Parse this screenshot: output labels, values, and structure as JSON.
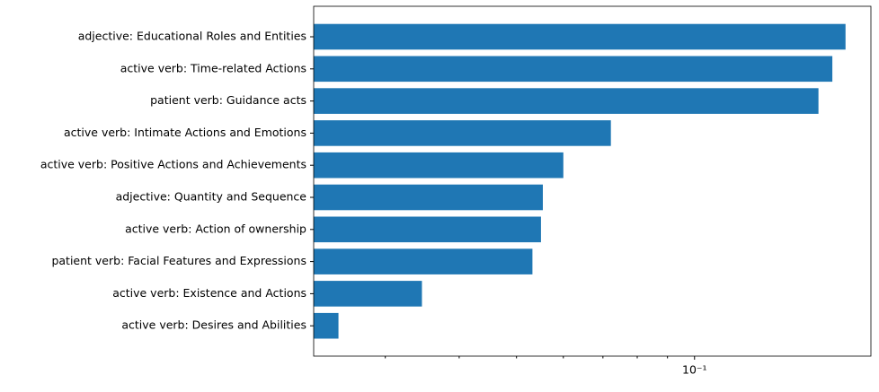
{
  "chart_data": {
    "type": "barh",
    "categories": [
      "adjective: Educational Roles and Entities",
      "active verb: Time-related Actions",
      "patient verb: Guidance acts",
      "active verb: Intimate Actions and Emotions",
      "active verb: Positive Actions and Achievements",
      "adjective: Quantity and Sequence",
      "active verb: Action of ownership",
      "patient verb: Facial Features and Expressions",
      "active verb: Existence and Actions",
      "active verb: Desires and Abilities"
    ],
    "values": [
      0.18,
      0.171,
      0.162,
      0.0722,
      0.06,
      0.0554,
      0.055,
      0.0532,
      0.0346,
      0.025
    ],
    "color": "#1f77b4",
    "xscale": "log",
    "xlim": [
      0.0227,
      0.1987
    ],
    "xticks": [
      {
        "value": 0.1,
        "label": "10⁻¹"
      }
    ],
    "xminorticks": [
      0.03,
      0.04,
      0.05,
      0.06,
      0.07,
      0.08,
      0.09
    ]
  }
}
